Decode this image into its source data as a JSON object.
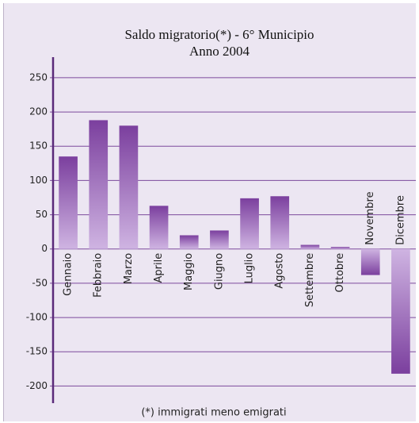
{
  "chart_data": {
    "type": "bar",
    "title": "Saldo migratorio(*) - 6° Municipio",
    "subtitle": "Anno 2004",
    "note": "(*) immigrati meno emigrati",
    "categories": [
      "Gennaio",
      "Febbraio",
      "Marzo",
      "Aprile",
      "Maggio",
      "Giugno",
      "Luglio",
      "Agosto",
      "Settembre",
      "Ottobre",
      "Novembre",
      "Dicembre"
    ],
    "values": [
      135,
      188,
      180,
      63,
      20,
      27,
      74,
      77,
      6,
      3,
      -38,
      -182
    ],
    "color": "#7b3f9e",
    "ylim": [
      -225,
      280
    ],
    "yticks": [
      -200,
      -150,
      -100,
      -50,
      0,
      50,
      100,
      150,
      200,
      250
    ],
    "grid": true
  }
}
